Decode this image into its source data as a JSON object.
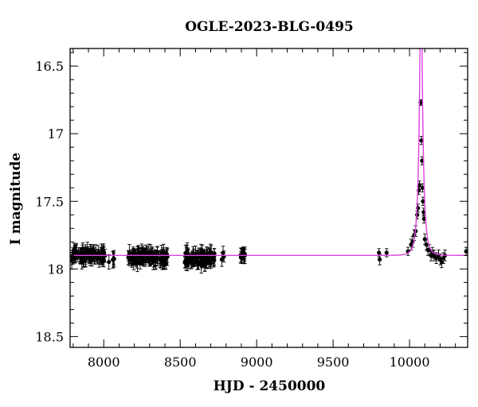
{
  "chart_data": {
    "type": "scatter",
    "title": "OGLE-2023-BLG-0495",
    "xlabel": "HJD - 2450000",
    "ylabel": "I magnitude",
    "xlim": [
      7780,
      10380
    ],
    "ylim": [
      18.58,
      16.37
    ],
    "y_inverted": true,
    "x_ticks": [
      8000,
      8500,
      9000,
      9500,
      10000
    ],
    "x_tick_labels": [
      "8000",
      "8500",
      "9000",
      "9500",
      "10000"
    ],
    "y_ticks": [
      16.5,
      17,
      17.5,
      18,
      18.5
    ],
    "y_tick_labels": [
      "16.5",
      "17",
      "17.5",
      "18",
      "18.5"
    ],
    "grid": false,
    "legend": "none",
    "colors": {
      "data": "#000000",
      "model": "#e040e0",
      "axes": "#000000"
    },
    "model": {
      "name": "",
      "type": "point-lens",
      "t0": 10075,
      "u0": 0.032,
      "tE": 28,
      "baseline_mag": 17.9
    },
    "series": [
      {
        "name": "",
        "marker": "circle-with-errorbar",
        "clusters": [
          {
            "x_range": [
              7790,
              8010
            ],
            "count": 90,
            "mag_mean": 17.9,
            "mag_scatter": 0.035,
            "err": 0.05
          },
          {
            "x_range": [
              8030,
              8070
            ],
            "count": 5,
            "mag_mean": 17.93,
            "mag_scatter": 0.03,
            "err": 0.05
          },
          {
            "x_range": [
              8160,
              8420
            ],
            "count": 110,
            "mag_mean": 17.91,
            "mag_scatter": 0.035,
            "err": 0.05
          },
          {
            "x_range": [
              8530,
              8730
            ],
            "count": 95,
            "mag_mean": 17.92,
            "mag_scatter": 0.04,
            "err": 0.05
          },
          {
            "x_range": [
              8765,
              8790
            ],
            "count": 3,
            "mag_mean": 17.9,
            "mag_scatter": 0.02,
            "err": 0.04
          },
          {
            "x_range": [
              8895,
              8925
            ],
            "count": 12,
            "mag_mean": 17.9,
            "mag_scatter": 0.03,
            "err": 0.05
          }
        ],
        "points": [
          [
            9800,
            17.88,
            0.03
          ],
          [
            9805,
            17.93,
            0.04
          ],
          [
            9850,
            17.88,
            0.03
          ],
          [
            9990,
            17.87,
            0.03
          ],
          [
            10010,
            17.82,
            0.04
          ],
          [
            10020,
            17.8,
            0.04
          ],
          [
            10030,
            17.75,
            0.04
          ],
          [
            10040,
            17.72,
            0.04
          ],
          [
            10050,
            17.6,
            0.03
          ],
          [
            10055,
            17.55,
            0.03
          ],
          [
            10060,
            17.42,
            0.03
          ],
          [
            10065,
            17.38,
            0.03
          ],
          [
            10072,
            16.77,
            0.02
          ],
          [
            10075,
            16.77,
            0.02
          ],
          [
            10078,
            17.05,
            0.03
          ],
          [
            10082,
            17.2,
            0.03
          ],
          [
            10085,
            17.4,
            0.03
          ],
          [
            10088,
            17.5,
            0.03
          ],
          [
            10092,
            17.58,
            0.03
          ],
          [
            10095,
            17.63,
            0.03
          ],
          [
            10100,
            17.78,
            0.04
          ],
          [
            10110,
            17.82,
            0.04
          ],
          [
            10120,
            17.86,
            0.04
          ],
          [
            10130,
            17.86,
            0.04
          ],
          [
            10140,
            17.9,
            0.04
          ],
          [
            10150,
            17.88,
            0.04
          ],
          [
            10160,
            17.9,
            0.04
          ],
          [
            10175,
            17.92,
            0.04
          ],
          [
            10190,
            17.9,
            0.04
          ],
          [
            10200,
            17.93,
            0.04
          ],
          [
            10210,
            17.95,
            0.04
          ],
          [
            10222,
            17.92,
            0.04
          ],
          [
            10232,
            17.9,
            0.04
          ],
          [
            10370,
            17.87,
            0.03
          ]
        ]
      }
    ]
  }
}
